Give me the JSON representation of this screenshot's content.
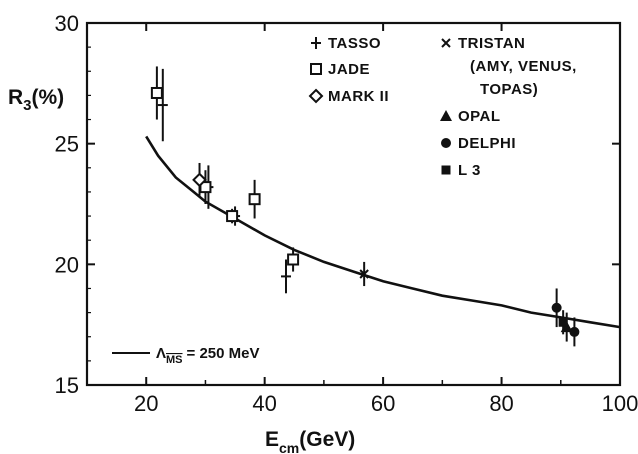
{
  "chart_data": {
    "type": "scatter",
    "title": "",
    "xlabel_main": "E",
    "xlabel_sub": "cm",
    "xlabel_unit": "(GeV)",
    "ylabel_main": "R",
    "ylabel_sub": "3",
    "ylabel_unit": "(%)",
    "xlim": [
      10,
      100
    ],
    "ylim": [
      15,
      30
    ],
    "x_ticks": [
      20,
      40,
      60,
      80,
      100
    ],
    "y_ticks": [
      15,
      20,
      25,
      30
    ],
    "x_tick_labels": [
      "20",
      "40",
      "60",
      "80",
      "100"
    ],
    "y_tick_labels": [
      "15",
      "20",
      "25",
      "30"
    ],
    "grid": false,
    "legend_placement": "top-right",
    "legend": [
      {
        "marker": "plus",
        "label": "TASSO"
      },
      {
        "marker": "square-open",
        "label": "JADE"
      },
      {
        "marker": "diamond-open",
        "label": "MARK II"
      },
      {
        "marker": "cross",
        "label": "TRISTAN"
      },
      {
        "marker": "none",
        "label": "(AMY, VENUS,"
      },
      {
        "marker": "none",
        "label": "TOPAS)"
      },
      {
        "marker": "triangle",
        "label": "OPAL"
      },
      {
        "marker": "circle-filled",
        "label": "DELPHI"
      },
      {
        "marker": "square-filled",
        "label": "L 3"
      }
    ],
    "fit": {
      "label_prefix": "Λ",
      "label_sub": "MS",
      "label_value": "= 250 MeV",
      "x": [
        20,
        22,
        25,
        28,
        30,
        35,
        40,
        45,
        50,
        55,
        60,
        65,
        70,
        75,
        80,
        85,
        90,
        95,
        100
      ],
      "y": [
        25.3,
        24.5,
        23.6,
        23.0,
        22.6,
        21.9,
        21.2,
        20.6,
        20.1,
        19.7,
        19.3,
        19.0,
        18.7,
        18.5,
        18.3,
        18.0,
        17.8,
        17.6,
        17.4
      ]
    },
    "series": [
      {
        "name": "TASSO",
        "marker": "plus",
        "points": [
          {
            "x": 22.8,
            "y": 26.6,
            "err": 1.5
          },
          {
            "x": 30.5,
            "y": 23.2,
            "err": 0.9
          },
          {
            "x": 35.0,
            "y": 22.0,
            "err": 0.4
          },
          {
            "x": 43.6,
            "y": 19.5,
            "err": 0.7
          }
        ]
      },
      {
        "name": "JADE",
        "marker": "square-open",
        "points": [
          {
            "x": 21.8,
            "y": 27.1,
            "err": 1.1
          },
          {
            "x": 30.0,
            "y": 23.2,
            "err": 0.7
          },
          {
            "x": 34.5,
            "y": 22.0,
            "err": 0.3
          },
          {
            "x": 38.3,
            "y": 22.7,
            "err": 0.8
          },
          {
            "x": 44.8,
            "y": 20.2,
            "err": 0.5
          }
        ]
      },
      {
        "name": "MARK II",
        "marker": "diamond-open",
        "points": [
          {
            "x": 29.0,
            "y": 23.5,
            "err": 0.7
          }
        ]
      },
      {
        "name": "TRISTAN",
        "marker": "cross",
        "points": [
          {
            "x": 56.8,
            "y": 19.6,
            "err": 0.5
          }
        ]
      },
      {
        "name": "OPAL",
        "marker": "triangle",
        "points": [
          {
            "x": 91.0,
            "y": 17.4,
            "err": 0.6
          }
        ]
      },
      {
        "name": "DELPHI",
        "marker": "circle-filled",
        "points": [
          {
            "x": 89.3,
            "y": 18.2,
            "err": 0.8
          },
          {
            "x": 92.3,
            "y": 17.2,
            "err": 0.6
          }
        ]
      },
      {
        "name": "L 3",
        "marker": "square-filled",
        "points": [
          {
            "x": 90.4,
            "y": 17.6,
            "err": 0.5
          }
        ]
      }
    ]
  }
}
